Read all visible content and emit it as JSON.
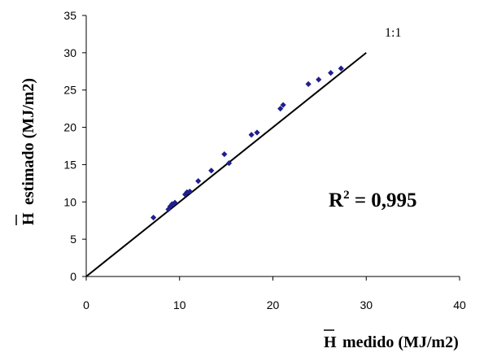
{
  "chart_data": {
    "type": "scatter",
    "xlim": [
      0,
      40
    ],
    "ylim": [
      0,
      35
    ],
    "xticks": [
      0,
      10,
      20,
      30,
      40
    ],
    "yticks": [
      0,
      5,
      10,
      15,
      20,
      25,
      30,
      35
    ],
    "x_ticklabels": [
      "0",
      "10",
      "20",
      "30",
      "40"
    ],
    "y_ticklabels": [
      "0",
      "5",
      "10",
      "15",
      "20",
      "25",
      "30",
      "35"
    ],
    "xlabel": {
      "symbol": "H",
      "text": "medido (MJ/m2)"
    },
    "ylabel": {
      "symbol": "H",
      "text": "estimado (MJ/m2)"
    },
    "grid": false,
    "marker_color": "#1f1f8f",
    "series": [
      {
        "values": [
          [
            7.2,
            7.9
          ],
          [
            8.8,
            9.0
          ],
          [
            9.0,
            9.4
          ],
          [
            9.2,
            9.7
          ],
          [
            9.5,
            9.9
          ],
          [
            10.6,
            11.0
          ],
          [
            10.8,
            11.3
          ],
          [
            11.1,
            11.4
          ],
          [
            12.0,
            12.8
          ],
          [
            13.4,
            14.2
          ],
          [
            14.8,
            16.4
          ],
          [
            15.3,
            15.2
          ],
          [
            17.7,
            19.0
          ],
          [
            18.3,
            19.3
          ],
          [
            20.8,
            22.5
          ],
          [
            21.1,
            23.0
          ],
          [
            23.8,
            25.8
          ],
          [
            24.9,
            26.4
          ],
          [
            26.2,
            27.3
          ],
          [
            27.3,
            27.9
          ]
        ]
      }
    ],
    "reference_line": {
      "label": "1:1",
      "from": [
        0,
        0
      ],
      "to": [
        30,
        30
      ]
    },
    "annotation": {
      "base": "R",
      "sup": "2",
      "rest": " = 0,995"
    }
  }
}
